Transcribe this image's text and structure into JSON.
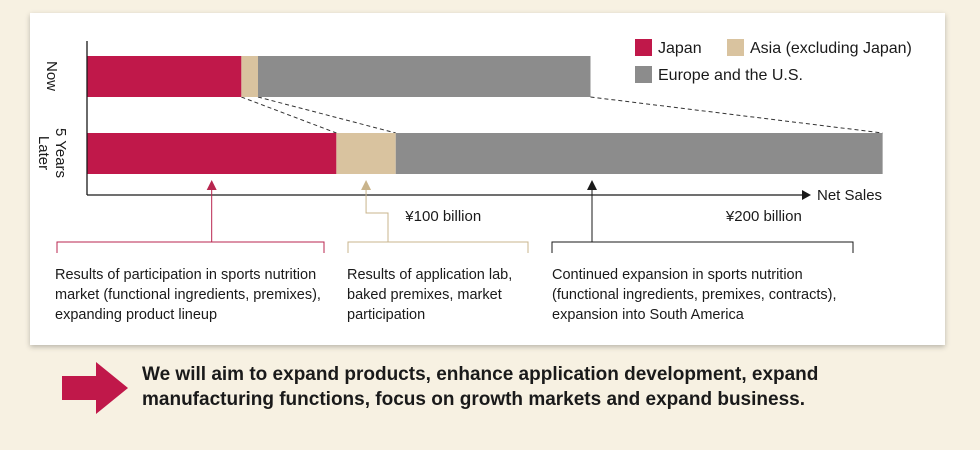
{
  "chart_data": {
    "type": "bar",
    "orientation": "horizontal",
    "stacked": true,
    "categories": [
      "Now",
      "5 Years Later"
    ],
    "series": [
      {
        "name": "Japan",
        "color": "#c0184a",
        "values": [
          65,
          105
        ]
      },
      {
        "name": "Asia (excluding Japan)",
        "color": "#d9c39f",
        "values": [
          7,
          25
        ]
      },
      {
        "name": "Europe and the U.S.",
        "color": "#8c8c8c",
        "values": [
          140,
          205
        ]
      }
    ],
    "xlabel": "Net Sales",
    "xlim": [
      0,
      320
    ],
    "ticks": [
      {
        "value": 150,
        "label": "¥100 billion"
      },
      {
        "value": 285,
        "label": "¥200 billion"
      }
    ],
    "grid": false,
    "legend_position": "top-right"
  },
  "notes": [
    {
      "text": "Results of participation in sports nutrition market (functional ingredients, premixes), expanding product lineup",
      "color": "#b8264f"
    },
    {
      "text": "Results of application lab, baked premixes, market participation",
      "color": "#c9b48c"
    },
    {
      "text": "Continued expansion in sports nutrition (functional ingredients, premixes, contracts), expansion into South America",
      "color": "#1a1a1a"
    }
  ],
  "message": "We will aim to expand products, enhance application development, expand manufacturing functions, focus on growth markets and expand business.",
  "arrow_color": "#c0184a"
}
